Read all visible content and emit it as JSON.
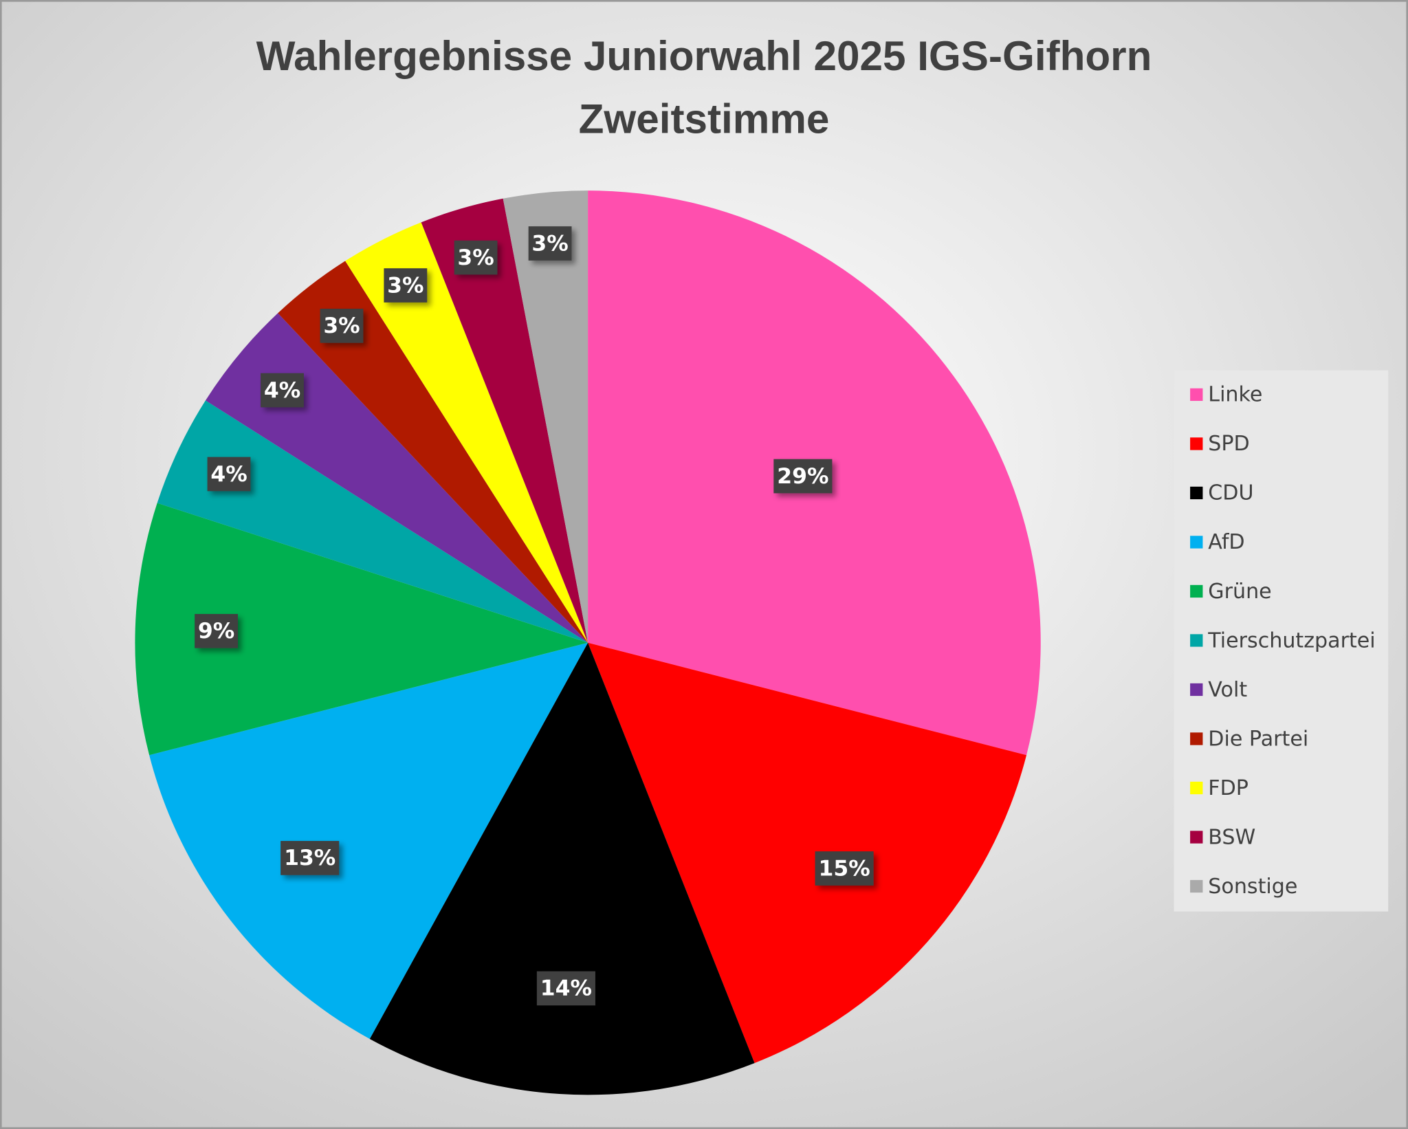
{
  "chart_data": {
    "type": "pie",
    "title": [
      "Wahlergebnisse Juniorwahl 2025 IGS-Gifhorn",
      "Zweitstimme"
    ],
    "categories": [
      "Linke",
      "SPD",
      "CDU",
      "AfD",
      "Grüne",
      "Tierschutzpartei",
      "Volt",
      "Die Partei",
      "FDP",
      "BSW",
      "Sonstige"
    ],
    "values": [
      29,
      15,
      14,
      13,
      9,
      4,
      4,
      3,
      3,
      3,
      3
    ],
    "value_labels": [
      "29%",
      "15%",
      "14%",
      "13%",
      "9%",
      "4%",
      "4%",
      "3%",
      "3%",
      "3%",
      "3%"
    ],
    "colors": [
      "#ff4fae",
      "#ff0000",
      "#000000",
      "#00b0f0",
      "#00b050",
      "#00a6a6",
      "#7030a0",
      "#b01a00",
      "#ffff00",
      "#a50040",
      "#aaaaaa"
    ],
    "legend": "right"
  }
}
